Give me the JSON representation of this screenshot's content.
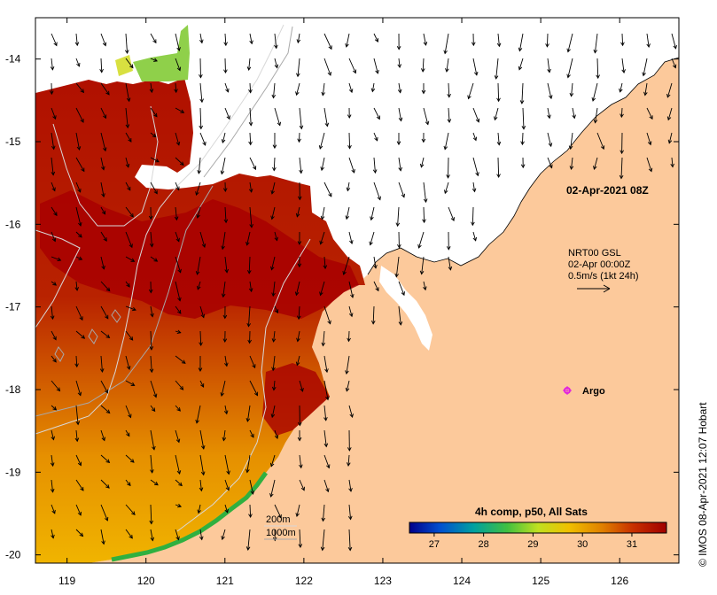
{
  "map": {
    "timestamp": "02-Apr-2021 08Z",
    "current_product": "NRT00 GSL",
    "current_time": "02-Apr 00:00Z",
    "current_scale": "0.5m/s (1kt 24h)",
    "argo_label": "Argo",
    "bathymetry_labels": [
      "200m",
      "1000m"
    ],
    "credit": "© IMOS 08-Apr-2021 12:07 Hobart",
    "lat_labels": [
      "-14",
      "-15",
      "-16",
      "-17",
      "-18",
      "-19",
      "-20"
    ],
    "lon_labels": [
      "119",
      "120",
      "121",
      "122",
      "123",
      "124",
      "125",
      "126"
    ],
    "lat_range": [
      -20.1,
      -13.5
    ],
    "lon_range": [
      118.6,
      126.75
    ],
    "colors": {
      "land": "#fcc99b",
      "cloud_gap": "#ffffff",
      "contour": "#d8d8d8",
      "argo": "#e020e0"
    }
  },
  "colorbar": {
    "title": "4h comp, p50, All Sats",
    "tick_labels": [
      "27",
      "28",
      "29",
      "30",
      "31"
    ],
    "min": 26.5,
    "max": 31.7,
    "colors": [
      "#00008b",
      "#0050d0",
      "#00a0a0",
      "#40c040",
      "#c0e020",
      "#f0c000",
      "#e08000",
      "#c83000",
      "#a00000"
    ]
  }
}
